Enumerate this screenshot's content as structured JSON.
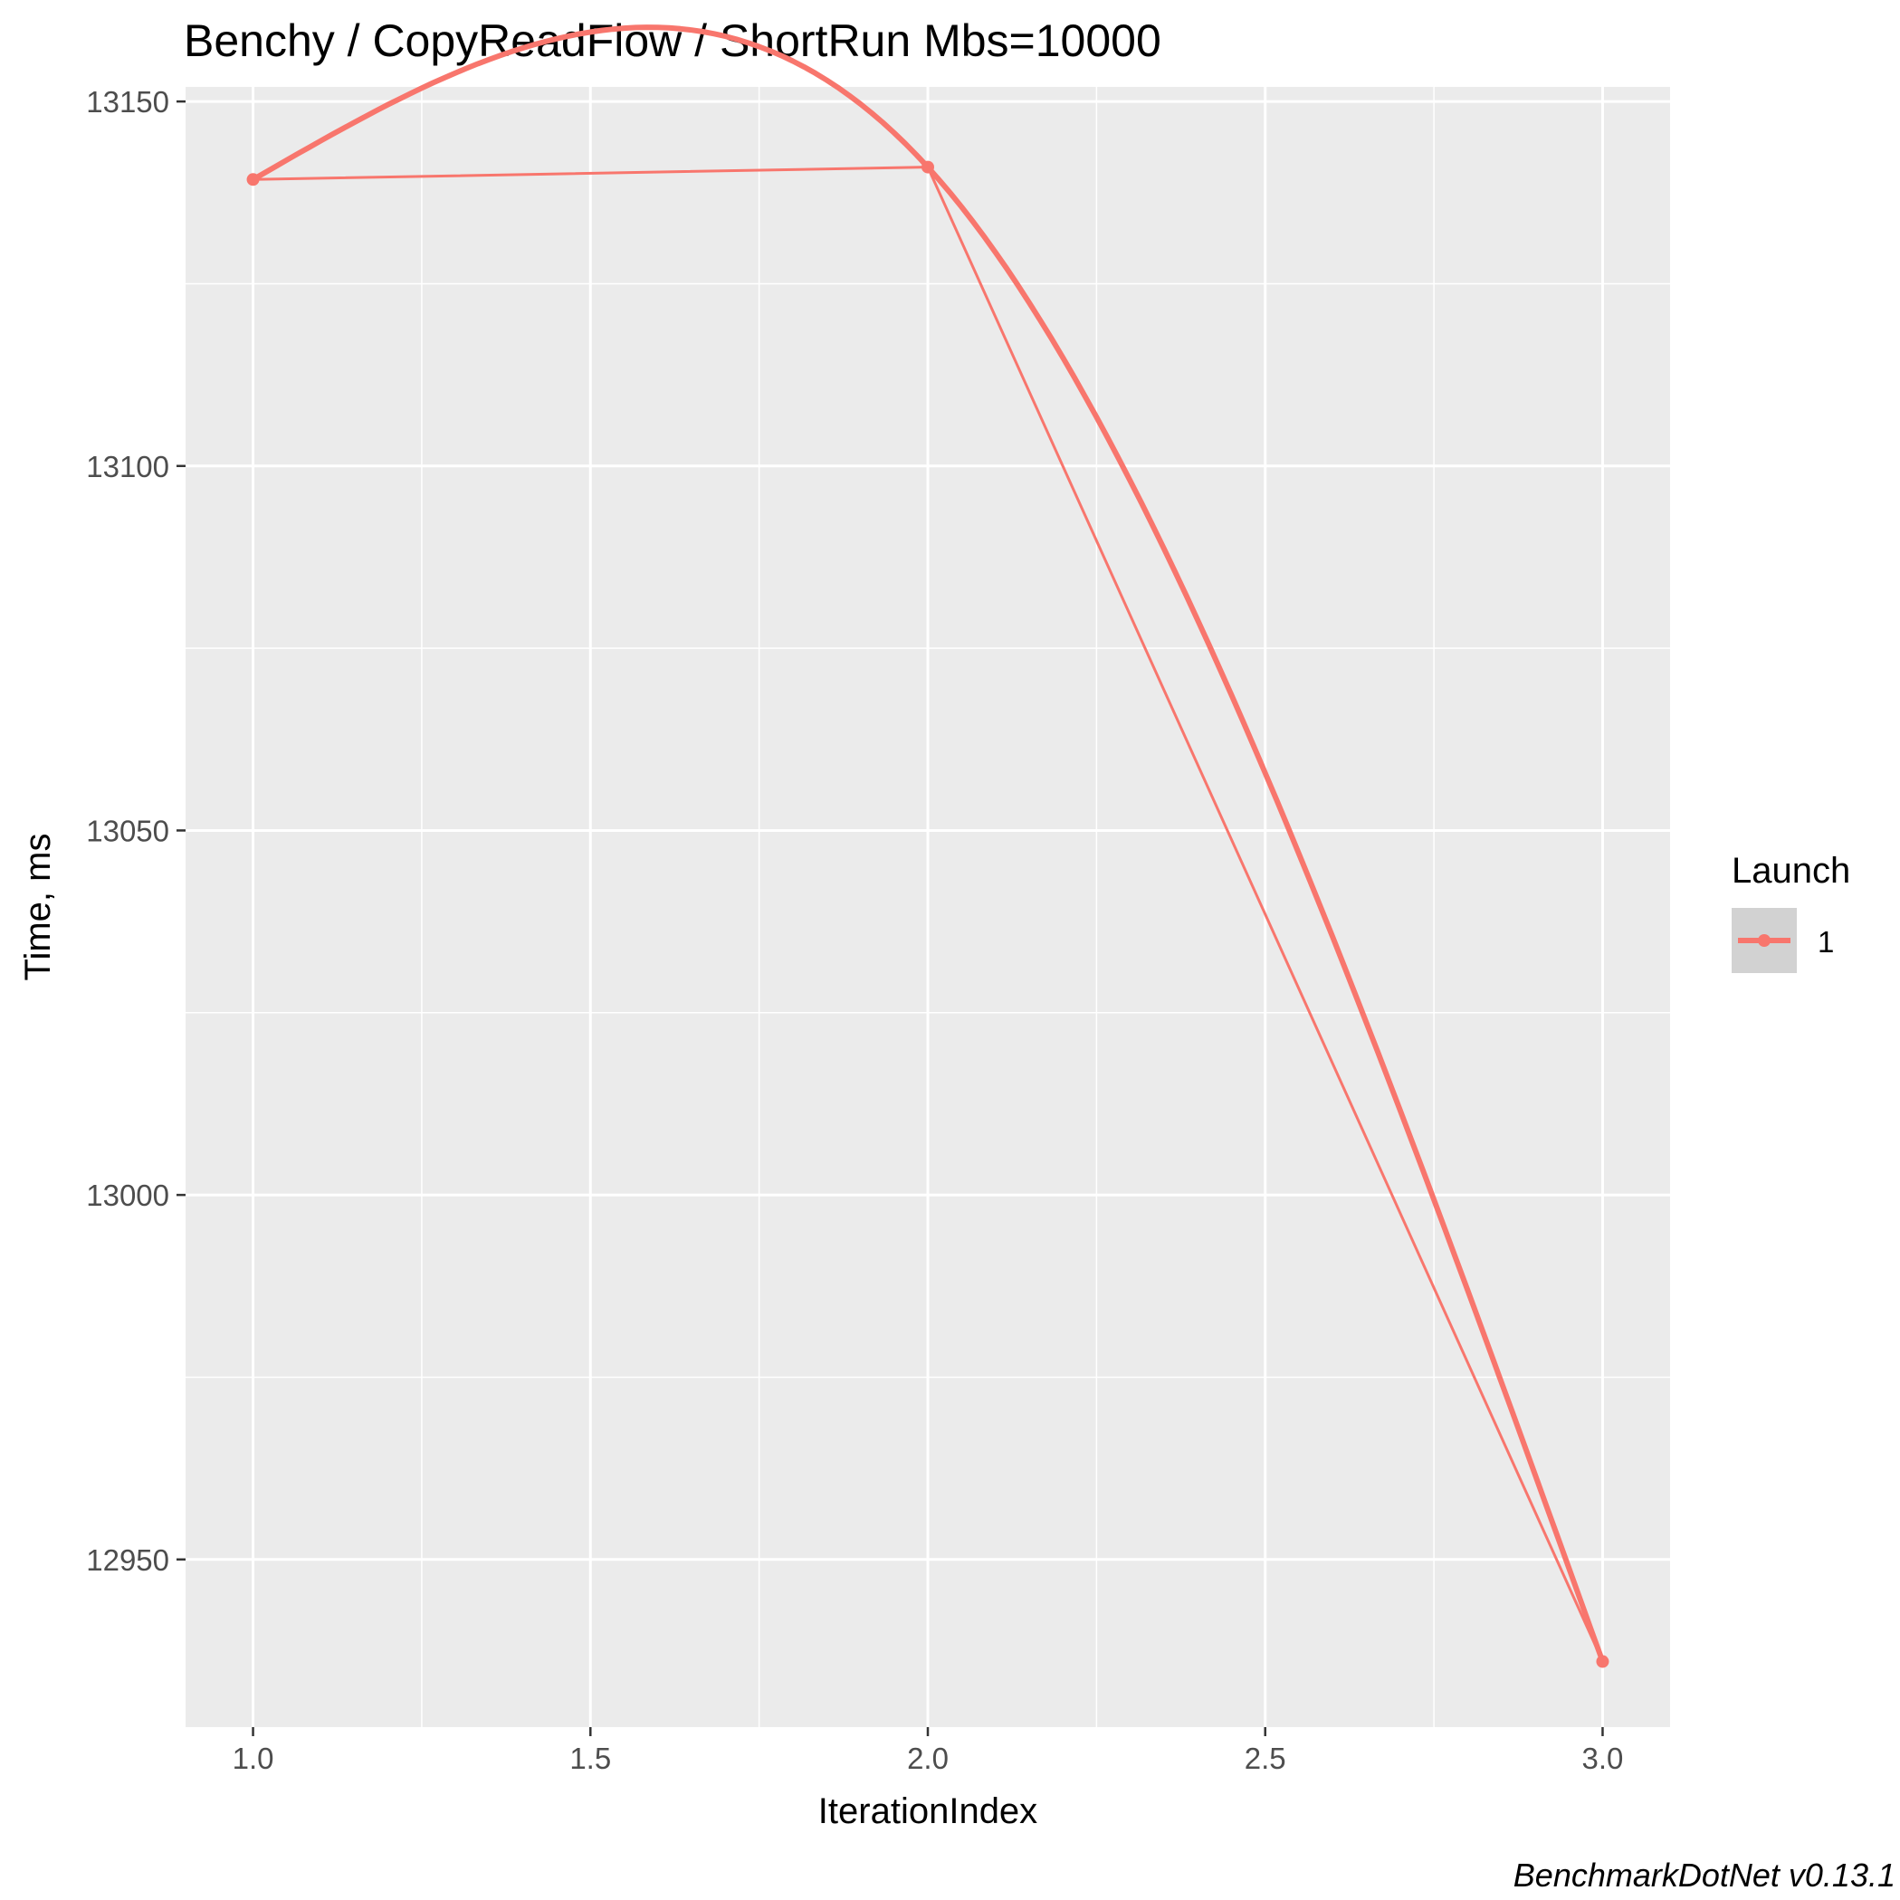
{
  "chart_data": {
    "type": "line",
    "title": "Benchy / CopyReadFlow / ShortRun Mbs=10000",
    "xlabel": "IterationIndex",
    "ylabel": "Time, ms",
    "xlim": [
      0.9,
      3.1
    ],
    "ylim": [
      12927,
      13152
    ],
    "x_ticks": [
      1.0,
      1.5,
      2.0,
      2.5,
      3.0
    ],
    "x_tick_labels": [
      "1.0",
      "1.5",
      "2.0",
      "2.5",
      "3.0"
    ],
    "y_ticks": [
      12950,
      13000,
      13050,
      13100,
      13150
    ],
    "y_tick_labels": [
      "12950",
      "13000",
      "13050",
      "13100",
      "13150"
    ],
    "grid": true,
    "background_color": "#EBEBEB",
    "legend": {
      "title": "Launch",
      "position": "right"
    },
    "series": [
      {
        "name": "1",
        "color": "#F8766D",
        "x": [
          1,
          2,
          3
        ],
        "y": [
          13139.3,
          13141.0,
          12936.0
        ],
        "smoothed": true
      }
    ],
    "caption": "BenchmarkDotNet v0.13.1"
  }
}
